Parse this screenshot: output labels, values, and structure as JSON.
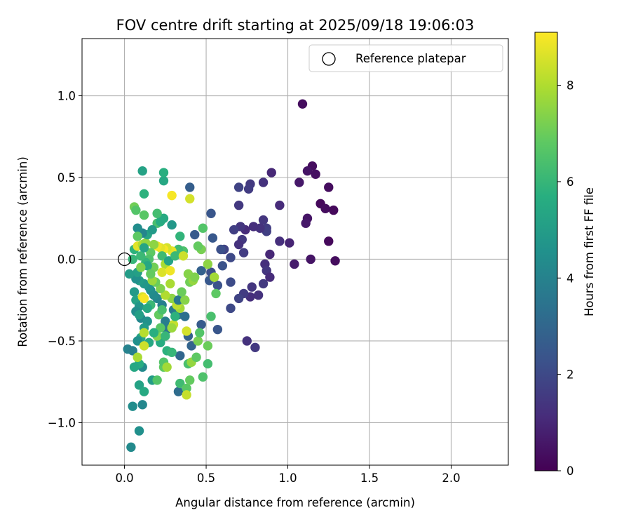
{
  "chart_data": {
    "type": "scatter",
    "title": "FOV centre drift starting at 2025/09/18 19:06:03",
    "xlabel": "Angular distance from reference (arcmin)",
    "ylabel": "Rotation from reference (arcmin)",
    "xlim": [
      -0.26,
      2.35
    ],
    "ylim": [
      -1.26,
      1.35
    ],
    "x_ticks": [
      0.0,
      0.5,
      1.0,
      1.5,
      2.0
    ],
    "x_tick_labels": [
      "0.0",
      "0.5",
      "1.0",
      "1.5",
      "2.0"
    ],
    "y_ticks": [
      -1.0,
      -0.5,
      0.0,
      0.5,
      1.0
    ],
    "y_tick_labels": [
      "−1.0",
      "−0.5",
      "0.0",
      "0.5",
      "1.0"
    ],
    "grid": true,
    "legend": {
      "position": "upper-right",
      "entries": [
        "Reference platepar"
      ]
    },
    "reference_point": {
      "x": 0.0,
      "y": 0.0
    },
    "colorbar": {
      "label": "Hours from first FF file",
      "range": [
        0,
        9.1
      ],
      "ticks": [
        0,
        2,
        4,
        6,
        8
      ],
      "tick_labels": [
        "0",
        "2",
        "4",
        "6",
        "8"
      ],
      "colormap": "viridis"
    },
    "points": [
      {
        "x": 1.09,
        "y": 0.95,
        "t": 0.3
      },
      {
        "x": 1.15,
        "y": 0.57,
        "t": 0.3
      },
      {
        "x": 1.12,
        "y": 0.54,
        "t": 0.5
      },
      {
        "x": 1.17,
        "y": 0.52,
        "t": 0.4
      },
      {
        "x": 1.25,
        "y": 0.44,
        "t": 0.3
      },
      {
        "x": 1.07,
        "y": 0.47,
        "t": 0.6
      },
      {
        "x": 1.2,
        "y": 0.34,
        "t": 0.2
      },
      {
        "x": 1.23,
        "y": 0.31,
        "t": 0.3
      },
      {
        "x": 1.28,
        "y": 0.3,
        "t": 0.2
      },
      {
        "x": 1.12,
        "y": 0.25,
        "t": 0.5
      },
      {
        "x": 1.11,
        "y": 0.22,
        "t": 0.6
      },
      {
        "x": 1.25,
        "y": 0.11,
        "t": 0.2
      },
      {
        "x": 1.29,
        "y": -0.01,
        "t": 0.3
      },
      {
        "x": 1.14,
        "y": 0.0,
        "t": 0.5
      },
      {
        "x": 1.04,
        "y": -0.03,
        "t": 0.7
      },
      {
        "x": 1.01,
        "y": 0.1,
        "t": 0.9
      },
      {
        "x": 0.95,
        "y": 0.11,
        "t": 1.2
      },
      {
        "x": 0.95,
        "y": 0.33,
        "t": 1.1
      },
      {
        "x": 0.9,
        "y": 0.53,
        "t": 1.0
      },
      {
        "x": 0.85,
        "y": 0.47,
        "t": 1.3
      },
      {
        "x": 0.77,
        "y": 0.46,
        "t": 1.5
      },
      {
        "x": 0.76,
        "y": 0.43,
        "t": 1.6
      },
      {
        "x": 0.7,
        "y": 0.44,
        "t": 1.8
      },
      {
        "x": 0.7,
        "y": 0.33,
        "t": 1.5
      },
      {
        "x": 0.85,
        "y": 0.24,
        "t": 1.4
      },
      {
        "x": 0.87,
        "y": 0.19,
        "t": 1.6
      },
      {
        "x": 0.87,
        "y": 0.17,
        "t": 1.7
      },
      {
        "x": 0.83,
        "y": 0.19,
        "t": 1.3
      },
      {
        "x": 0.79,
        "y": 0.2,
        "t": 1.2
      },
      {
        "x": 0.74,
        "y": 0.18,
        "t": 1.1
      },
      {
        "x": 0.71,
        "y": 0.2,
        "t": 1.4
      },
      {
        "x": 0.67,
        "y": 0.18,
        "t": 1.7
      },
      {
        "x": 0.72,
        "y": 0.12,
        "t": 1.5
      },
      {
        "x": 0.7,
        "y": 0.09,
        "t": 1.3
      },
      {
        "x": 0.73,
        "y": 0.04,
        "t": 1.6
      },
      {
        "x": 0.65,
        "y": 0.01,
        "t": 2.0
      },
      {
        "x": 0.61,
        "y": 0.06,
        "t": 1.8
      },
      {
        "x": 0.59,
        "y": 0.06,
        "t": 2.2
      },
      {
        "x": 0.6,
        "y": -0.04,
        "t": 2.3
      },
      {
        "x": 0.54,
        "y": 0.13,
        "t": 2.5
      },
      {
        "x": 0.53,
        "y": 0.28,
        "t": 2.4
      },
      {
        "x": 0.43,
        "y": 0.15,
        "t": 2.6
      },
      {
        "x": 0.4,
        "y": 0.44,
        "t": 2.7
      },
      {
        "x": 0.89,
        "y": 0.03,
        "t": 1.0
      },
      {
        "x": 0.86,
        "y": -0.03,
        "t": 1.2
      },
      {
        "x": 0.87,
        "y": -0.07,
        "t": 1.4
      },
      {
        "x": 0.89,
        "y": -0.11,
        "t": 1.1
      },
      {
        "x": 0.85,
        "y": -0.15,
        "t": 1.5
      },
      {
        "x": 0.78,
        "y": -0.17,
        "t": 1.4
      },
      {
        "x": 0.82,
        "y": -0.22,
        "t": 1.3
      },
      {
        "x": 0.77,
        "y": -0.23,
        "t": 1.2
      },
      {
        "x": 0.73,
        "y": -0.21,
        "t": 1.6
      },
      {
        "x": 0.7,
        "y": -0.24,
        "t": 1.8
      },
      {
        "x": 0.65,
        "y": -0.3,
        "t": 2.0
      },
      {
        "x": 0.65,
        "y": -0.14,
        "t": 2.1
      },
      {
        "x": 0.57,
        "y": -0.16,
        "t": 2.3
      },
      {
        "x": 0.52,
        "y": -0.13,
        "t": 2.5
      },
      {
        "x": 0.53,
        "y": -0.08,
        "t": 2.2
      },
      {
        "x": 0.47,
        "y": -0.07,
        "t": 2.8
      },
      {
        "x": 0.57,
        "y": -0.43,
        "t": 2.4
      },
      {
        "x": 0.47,
        "y": -0.4,
        "t": 2.6
      },
      {
        "x": 0.75,
        "y": -0.5,
        "t": 1.3
      },
      {
        "x": 0.8,
        "y": -0.54,
        "t": 1.5
      },
      {
        "x": 0.39,
        "y": -0.47,
        "t": 2.8
      },
      {
        "x": 0.41,
        "y": -0.53,
        "t": 2.9
      },
      {
        "x": 0.34,
        "y": -0.59,
        "t": 3.0
      },
      {
        "x": 0.33,
        "y": -0.81,
        "t": 3.2
      },
      {
        "x": 0.37,
        "y": -0.35,
        "t": 3.3
      },
      {
        "x": 0.33,
        "y": -0.34,
        "t": 3.4
      },
      {
        "x": 0.26,
        "y": -0.43,
        "t": 3.6
      },
      {
        "x": 0.25,
        "y": -0.38,
        "t": 3.8
      },
      {
        "x": 0.3,
        "y": -0.31,
        "t": 3.7
      },
      {
        "x": 0.23,
        "y": -0.28,
        "t": 3.9
      },
      {
        "x": 0.2,
        "y": -0.24,
        "t": 4.1
      },
      {
        "x": 0.18,
        "y": -0.22,
        "t": 4.3
      },
      {
        "x": 0.16,
        "y": -0.19,
        "t": 4.4
      },
      {
        "x": 0.15,
        "y": -0.17,
        "t": 4.6
      },
      {
        "x": 0.12,
        "y": -0.15,
        "t": 4.8
      },
      {
        "x": 0.09,
        "y": -0.13,
        "t": 5.0
      },
      {
        "x": 0.07,
        "y": -0.12,
        "t": 4.5
      },
      {
        "x": 0.08,
        "y": -0.08,
        "t": 5.1
      },
      {
        "x": 0.03,
        "y": -0.09,
        "t": 5.0
      },
      {
        "x": 0.06,
        "y": -0.2,
        "t": 4.9
      },
      {
        "x": 0.07,
        "y": -0.25,
        "t": 5.2
      },
      {
        "x": 0.09,
        "y": -0.29,
        "t": 4.7
      },
      {
        "x": 0.07,
        "y": -0.32,
        "t": 4.4
      },
      {
        "x": 0.1,
        "y": -0.36,
        "t": 4.2
      },
      {
        "x": 0.14,
        "y": -0.38,
        "t": 4.6
      },
      {
        "x": 0.12,
        "y": -0.42,
        "t": 4.9
      },
      {
        "x": 0.1,
        "y": -0.48,
        "t": 5.3
      },
      {
        "x": 0.08,
        "y": -0.5,
        "t": 4.5
      },
      {
        "x": 0.15,
        "y": -0.51,
        "t": 5.4
      },
      {
        "x": 0.02,
        "y": -0.55,
        "t": 4.0
      },
      {
        "x": 0.05,
        "y": -0.56,
        "t": 3.9
      },
      {
        "x": 0.11,
        "y": -0.66,
        "t": 4.3
      },
      {
        "x": 0.09,
        "y": -0.64,
        "t": 5.6
      },
      {
        "x": 0.06,
        "y": -0.66,
        "t": 5.4
      },
      {
        "x": 0.09,
        "y": -0.77,
        "t": 5.2
      },
      {
        "x": 0.12,
        "y": -0.81,
        "t": 5.5
      },
      {
        "x": 0.05,
        "y": -0.9,
        "t": 4.4
      },
      {
        "x": 0.11,
        "y": -0.89,
        "t": 4.2
      },
      {
        "x": 0.09,
        "y": -1.05,
        "t": 4.5
      },
      {
        "x": 0.04,
        "y": -1.15,
        "t": 4.3
      },
      {
        "x": 0.17,
        "y": -0.74,
        "t": 5.0
      },
      {
        "x": 0.2,
        "y": -0.74,
        "t": 6.6
      },
      {
        "x": 0.24,
        "y": -0.66,
        "t": 6.8
      },
      {
        "x": 0.26,
        "y": -0.56,
        "t": 5.8
      },
      {
        "x": 0.29,
        "y": -0.57,
        "t": 6.0
      },
      {
        "x": 0.22,
        "y": -0.51,
        "t": 5.6
      },
      {
        "x": 0.2,
        "y": -0.47,
        "t": 7.4
      },
      {
        "x": 0.24,
        "y": -0.63,
        "t": 6.6
      },
      {
        "x": 0.26,
        "y": -0.66,
        "t": 7.8
      },
      {
        "x": 0.34,
        "y": -0.76,
        "t": 6.2
      },
      {
        "x": 0.38,
        "y": -0.79,
        "t": 6.7
      },
      {
        "x": 0.38,
        "y": -0.83,
        "t": 8.3
      },
      {
        "x": 0.4,
        "y": -0.74,
        "t": 6.9
      },
      {
        "x": 0.39,
        "y": -0.64,
        "t": 6.4
      },
      {
        "x": 0.41,
        "y": -0.63,
        "t": 7.6
      },
      {
        "x": 0.44,
        "y": -0.6,
        "t": 6.8
      },
      {
        "x": 0.48,
        "y": -0.72,
        "t": 6.5
      },
      {
        "x": 0.51,
        "y": -0.64,
        "t": 6.3
      },
      {
        "x": 0.51,
        "y": -0.53,
        "t": 7.0
      },
      {
        "x": 0.45,
        "y": -0.5,
        "t": 7.2
      },
      {
        "x": 0.46,
        "y": -0.45,
        "t": 6.6
      },
      {
        "x": 0.53,
        "y": -0.35,
        "t": 6.4
      },
      {
        "x": 0.38,
        "y": -0.44,
        "t": 8.5
      },
      {
        "x": 0.34,
        "y": -0.3,
        "t": 7.8
      },
      {
        "x": 0.32,
        "y": -0.28,
        "t": 8.2
      },
      {
        "x": 0.29,
        "y": -0.24,
        "t": 7.5
      },
      {
        "x": 0.25,
        "y": -0.22,
        "t": 8.0
      },
      {
        "x": 0.22,
        "y": -0.18,
        "t": 7.3
      },
      {
        "x": 0.19,
        "y": -0.14,
        "t": 7.0
      },
      {
        "x": 0.17,
        "y": -0.13,
        "t": 7.7
      },
      {
        "x": 0.11,
        "y": -0.23,
        "t": 8.6
      },
      {
        "x": 0.12,
        "y": -0.45,
        "t": 8.1
      },
      {
        "x": 0.12,
        "y": -0.53,
        "t": 8.4
      },
      {
        "x": 0.08,
        "y": -0.6,
        "t": 7.9
      },
      {
        "x": 0.3,
        "y": -0.4,
        "t": 8.3
      },
      {
        "x": 0.28,
        "y": -0.15,
        "t": 7.9
      },
      {
        "x": 0.4,
        "y": -0.14,
        "t": 7.1
      },
      {
        "x": 0.42,
        "y": -0.13,
        "t": 7.6
      },
      {
        "x": 0.39,
        "y": -0.09,
        "t": 7.4
      },
      {
        "x": 0.55,
        "y": -0.11,
        "t": 7.8
      },
      {
        "x": 0.56,
        "y": -0.21,
        "t": 6.8
      },
      {
        "x": 0.51,
        "y": -0.03,
        "t": 7.5
      },
      {
        "x": 0.47,
        "y": 0.06,
        "t": 7.2
      },
      {
        "x": 0.45,
        "y": 0.08,
        "t": 6.9
      },
      {
        "x": 0.48,
        "y": 0.19,
        "t": 6.6
      },
      {
        "x": 0.36,
        "y": 0.05,
        "t": 6.5
      },
      {
        "x": 0.33,
        "y": 0.06,
        "t": 6.2
      },
      {
        "x": 0.29,
        "y": 0.05,
        "t": 8.8
      },
      {
        "x": 0.26,
        "y": 0.07,
        "t": 8.5
      },
      {
        "x": 0.24,
        "y": 0.06,
        "t": 9.0
      },
      {
        "x": 0.22,
        "y": 0.07,
        "t": 8.7
      },
      {
        "x": 0.2,
        "y": 0.08,
        "t": 8.9
      },
      {
        "x": 0.18,
        "y": 0.09,
        "t": 7.5
      },
      {
        "x": 0.16,
        "y": 0.04,
        "t": 6.8
      },
      {
        "x": 0.15,
        "y": 0.0,
        "t": 6.5
      },
      {
        "x": 0.13,
        "y": -0.02,
        "t": 5.9
      },
      {
        "x": 0.1,
        "y": 0.02,
        "t": 6.1
      },
      {
        "x": 0.06,
        "y": 0.06,
        "t": 5.8
      },
      {
        "x": 0.08,
        "y": 0.08,
        "t": 8.7
      },
      {
        "x": 0.11,
        "y": 0.09,
        "t": 8.0
      },
      {
        "x": 0.13,
        "y": 0.1,
        "t": 7.6
      },
      {
        "x": 0.14,
        "y": 0.15,
        "t": 5.3
      },
      {
        "x": 0.11,
        "y": 0.16,
        "t": 4.1
      },
      {
        "x": 0.08,
        "y": 0.19,
        "t": 4.4
      },
      {
        "x": 0.2,
        "y": 0.22,
        "t": 6.4
      },
      {
        "x": 0.22,
        "y": 0.23,
        "t": 5.6
      },
      {
        "x": 0.24,
        "y": 0.25,
        "t": 5.5
      },
      {
        "x": 0.2,
        "y": 0.28,
        "t": 6.3
      },
      {
        "x": 0.12,
        "y": 0.27,
        "t": 6.7
      },
      {
        "x": 0.06,
        "y": 0.32,
        "t": 7.1
      },
      {
        "x": 0.07,
        "y": 0.3,
        "t": 6.6
      },
      {
        "x": 0.12,
        "y": 0.4,
        "t": 5.8
      },
      {
        "x": 0.24,
        "y": 0.48,
        "t": 5.4
      },
      {
        "x": 0.24,
        "y": 0.53,
        "t": 5.7
      },
      {
        "x": 0.11,
        "y": 0.54,
        "t": 5.2
      },
      {
        "x": 0.29,
        "y": 0.39,
        "t": 9.0
      },
      {
        "x": 0.4,
        "y": 0.37,
        "t": 8.5
      },
      {
        "x": 0.29,
        "y": 0.21,
        "t": 4.8
      },
      {
        "x": 0.34,
        "y": 0.14,
        "t": 5.9
      },
      {
        "x": 0.23,
        "y": 0.02,
        "t": 6.2
      },
      {
        "x": 0.25,
        "y": -0.03,
        "t": 7.9
      },
      {
        "x": 0.23,
        "y": -0.08,
        "t": 8.6
      },
      {
        "x": 0.18,
        "y": -0.05,
        "t": 7.1
      },
      {
        "x": 0.14,
        "y": -0.04,
        "t": 5.4
      },
      {
        "x": 0.27,
        "y": -0.01,
        "t": 5.2
      },
      {
        "x": 0.31,
        "y": 0.02,
        "t": 6.1
      },
      {
        "x": 0.36,
        "y": 0.02,
        "t": 8.4
      },
      {
        "x": 0.43,
        "y": -0.11,
        "t": 7.3
      },
      {
        "x": 0.28,
        "y": -0.07,
        "t": 8.9
      },
      {
        "x": 0.29,
        "y": -0.42,
        "t": 7.7
      },
      {
        "x": 0.31,
        "y": -0.35,
        "t": 5.8
      },
      {
        "x": 0.16,
        "y": -0.28,
        "t": 6.1
      },
      {
        "x": 0.14,
        "y": -0.3,
        "t": 5.5
      },
      {
        "x": 0.12,
        "y": -0.24,
        "t": 9.0
      },
      {
        "x": 0.21,
        "y": -0.34,
        "t": 6.9
      },
      {
        "x": 0.23,
        "y": -0.31,
        "t": 6.4
      },
      {
        "x": 0.09,
        "y": -0.34,
        "t": 5.1
      },
      {
        "x": 0.25,
        "y": -0.47,
        "t": 6.0
      },
      {
        "x": 0.22,
        "y": -0.42,
        "t": 6.7
      },
      {
        "x": 0.18,
        "y": -0.45,
        "t": 5.7
      },
      {
        "x": 0.16,
        "y": -0.09,
        "t": 6.9
      },
      {
        "x": 0.1,
        "y": -0.05,
        "t": 7.3
      },
      {
        "x": 0.05,
        "y": 0.0,
        "t": 6.0
      },
      {
        "x": 0.12,
        "y": 0.07,
        "t": 5.3
      },
      {
        "x": 0.08,
        "y": 0.14,
        "t": 6.8
      },
      {
        "x": 0.17,
        "y": 0.18,
        "t": 4.9
      },
      {
        "x": 0.33,
        "y": -0.25,
        "t": 3.6
      },
      {
        "x": 0.37,
        "y": -0.25,
        "t": 7.4
      },
      {
        "x": 0.35,
        "y": -0.2,
        "t": 7.0
      }
    ]
  }
}
